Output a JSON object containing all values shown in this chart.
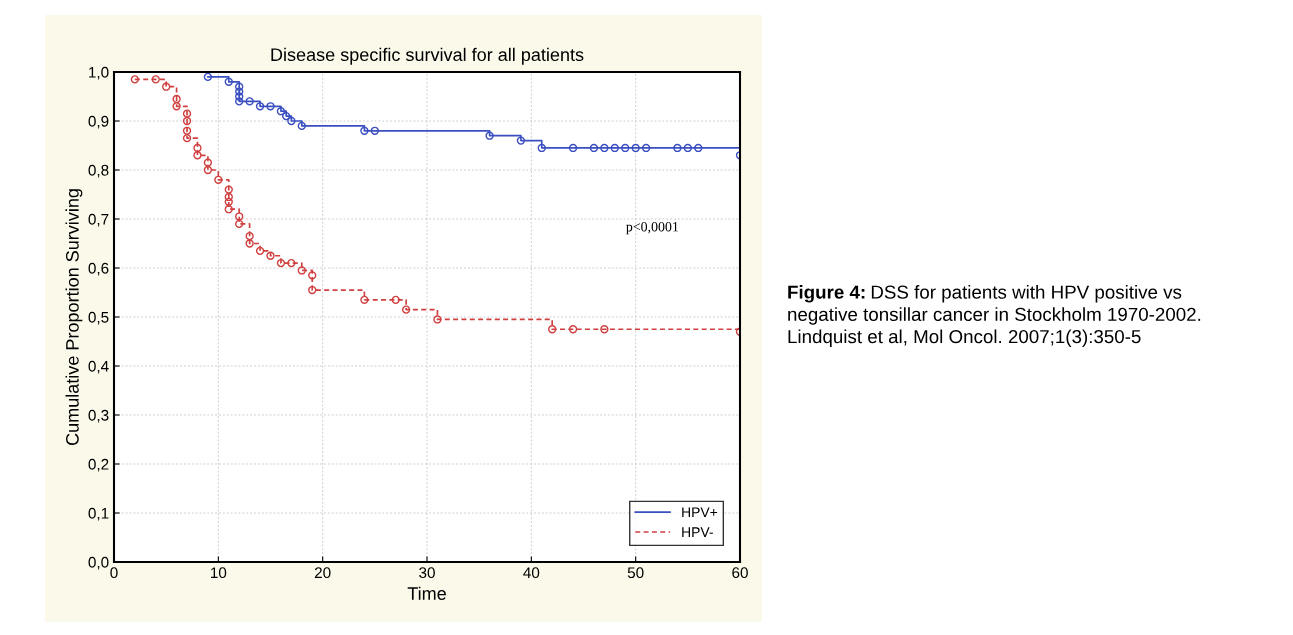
{
  "chart_data": {
    "type": "step",
    "title": "Disease specific survival for all patients",
    "xlabel": "Time",
    "ylabel": "Cumulative Proportion Surviving",
    "annotations": [
      "p<0,0001",
      "Figure 4:",
      "DSS for patients with HPV positive vs negative tonsillar cancer in Stockholm 1970-2002. Lindquist et al, Mol Oncol. 2007;1(3):350-5"
    ],
    "series": [
      {
        "name": "HPV+",
        "color": "#3a4fc0",
        "line_style": "solid",
        "x": [
          9,
          11,
          12,
          12,
          12,
          12,
          13,
          14,
          15,
          16,
          16.5,
          17,
          18,
          24,
          25,
          36,
          39,
          41,
          44,
          46,
          47,
          48,
          49,
          50,
          51,
          54,
          55,
          56,
          60
        ],
        "values": [
          0.99,
          0.98,
          0.97,
          0.96,
          0.95,
          0.94,
          0.94,
          0.93,
          0.93,
          0.92,
          0.91,
          0.9,
          0.89,
          0.88,
          0.88,
          0.87,
          0.86,
          0.845,
          0.845,
          0.845,
          0.845,
          0.845,
          0.845,
          0.845,
          0.845,
          0.845,
          0.845,
          0.845,
          0.83
        ]
      },
      {
        "name": "HPV-",
        "color": "#d04040",
        "line_style": "dashed",
        "x": [
          2,
          4,
          5,
          6,
          6,
          7,
          7,
          7,
          7,
          8,
          8,
          9,
          9,
          10,
          11,
          11,
          11,
          11,
          12,
          12,
          13,
          13,
          14,
          15,
          16,
          17,
          18,
          19,
          19,
          24,
          27,
          28,
          31,
          42,
          44,
          47,
          60
        ],
        "values": [
          0.985,
          0.985,
          0.97,
          0.945,
          0.93,
          0.915,
          0.9,
          0.88,
          0.865,
          0.845,
          0.83,
          0.815,
          0.8,
          0.78,
          0.76,
          0.745,
          0.735,
          0.72,
          0.705,
          0.69,
          0.665,
          0.65,
          0.635,
          0.625,
          0.61,
          0.61,
          0.595,
          0.585,
          0.555,
          0.535,
          0.535,
          0.515,
          0.495,
          0.475,
          0.475,
          0.475,
          0.47
        ]
      }
    ],
    "marker": "circle",
    "xlim": [
      0,
      60
    ],
    "xticks": [
      0,
      10,
      20,
      30,
      40,
      50,
      60
    ],
    "ylim": [
      0,
      1
    ],
    "yticks": [
      {
        "value": 0,
        "label": "0,0"
      },
      {
        "value": 0.1,
        "label": "0,1"
      },
      {
        "value": 0.2,
        "label": "0,2"
      },
      {
        "value": 0.3,
        "label": "0,3"
      },
      {
        "value": 0.4,
        "label": "0,4"
      },
      {
        "value": 0.5,
        "label": "0,5"
      },
      {
        "value": 0.6,
        "label": "0,6"
      },
      {
        "value": 0.7,
        "label": "0,7"
      },
      {
        "value": 0.8,
        "label": "0,8"
      },
      {
        "value": 0.9,
        "label": "0,9"
      },
      {
        "value": 1.0,
        "label": "1,0"
      }
    ],
    "grid": true,
    "legend": "bottom right"
  }
}
